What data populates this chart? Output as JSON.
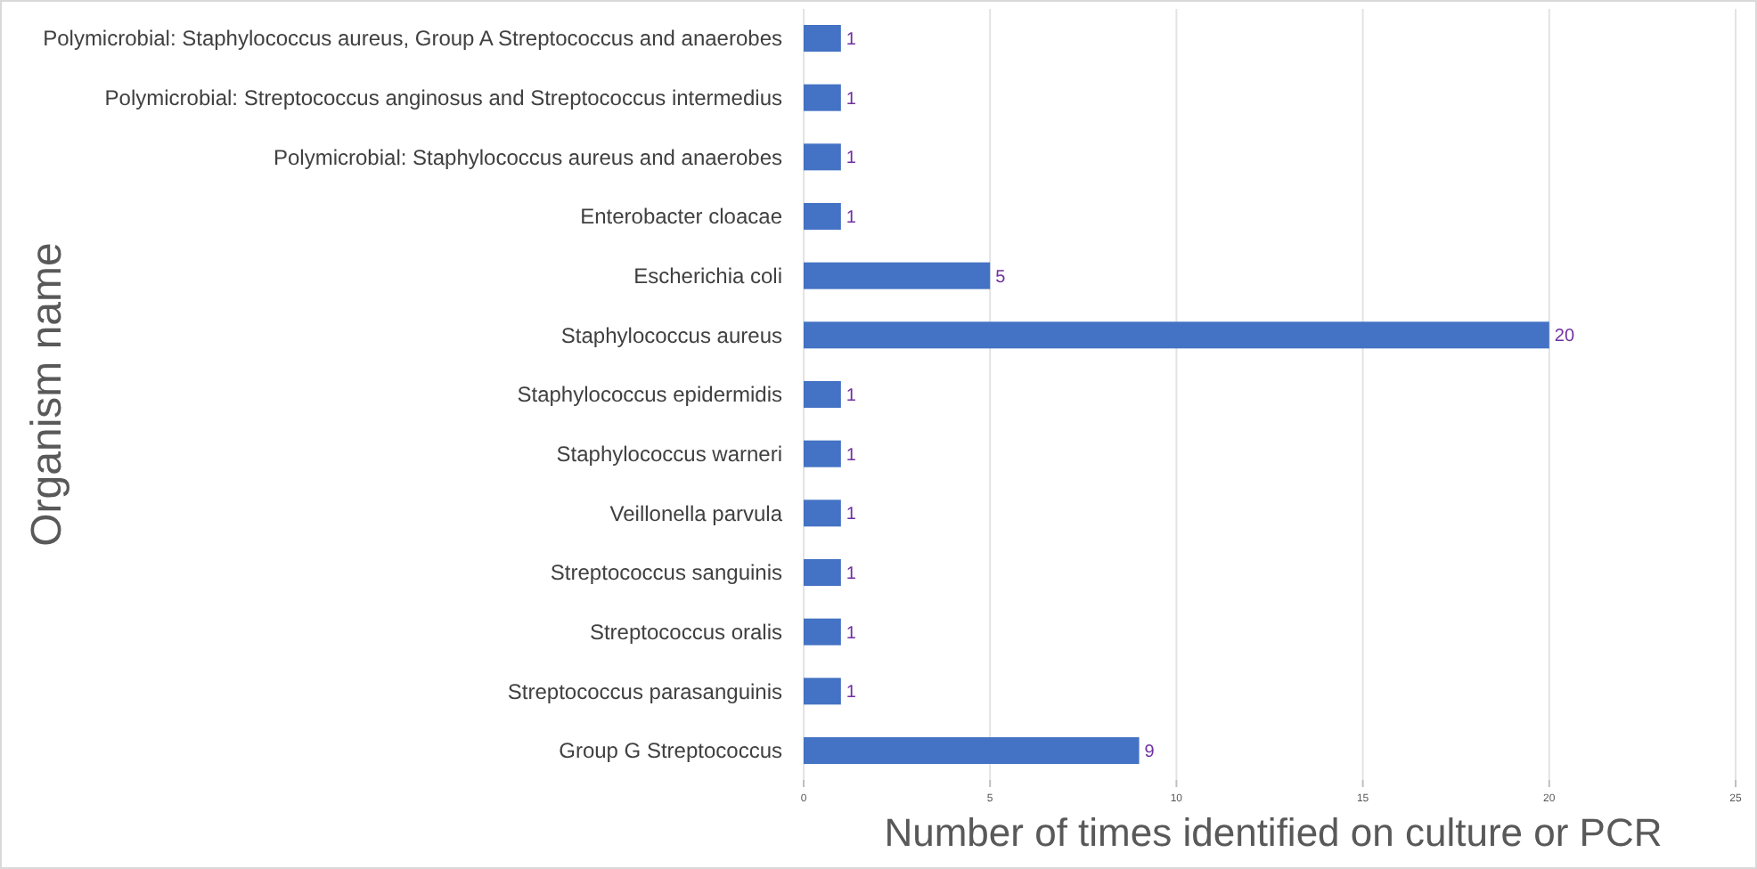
{
  "chart_data": {
    "type": "bar",
    "orientation": "horizontal",
    "xlabel": "Number of times identified on culture or PCR",
    "ylabel": "Organism name",
    "categories": [
      "Polymicrobial: Staphylococcus aureus, Group A Streptococcus and anaerobes",
      "Polymicrobial: Streptococcus anginosus and Streptococcus intermedius",
      "Polymicrobial: Staphylococcus aureus and anaerobes",
      "Enterobacter cloacae",
      "Escherichia coli",
      "Staphylococcus aureus",
      "Staphylococcus epidermidis",
      "Staphylococcus warneri",
      "Veillonella parvula",
      "Streptococcus sanguinis",
      "Streptococcus oralis",
      "Streptococcus parasanguinis",
      "Group G Streptococcus"
    ],
    "values": [
      1,
      1,
      1,
      1,
      5,
      20,
      1,
      1,
      1,
      1,
      1,
      1,
      9
    ],
    "color": "#4472c4",
    "xlim": [
      0,
      25
    ],
    "xticks": [
      0,
      5,
      10,
      15,
      20,
      25
    ],
    "grid": "x",
    "data_labels": true
  }
}
